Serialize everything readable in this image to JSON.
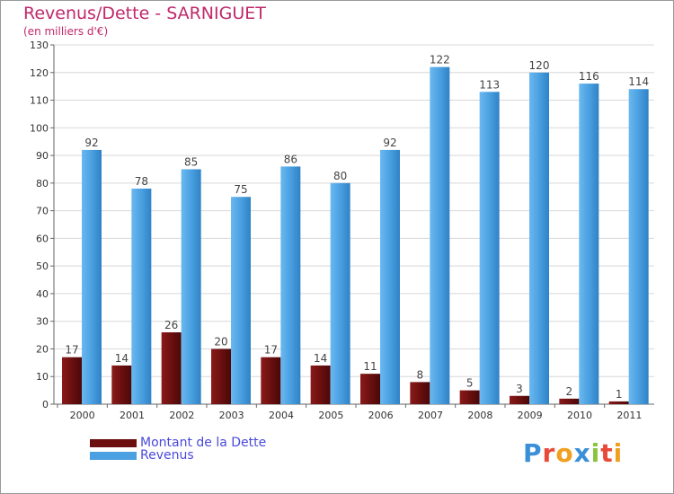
{
  "colors": {
    "title": "#c0286b",
    "dette": "#6b0f0f",
    "revenus": "#4aa0e0",
    "legend_text": "#4a4adc",
    "grid": "#d8d8d8"
  },
  "logo": {
    "text": "Proxiti",
    "letters": [
      {
        "ch": "P",
        "color": "#3a8fd8"
      },
      {
        "ch": "r",
        "color": "#e84a3a"
      },
      {
        "ch": "o",
        "color": "#f0a020"
      },
      {
        "ch": "x",
        "color": "#3a8fd8"
      },
      {
        "ch": "i",
        "color": "#8ac43f"
      },
      {
        "ch": "t",
        "color": "#e84a3a"
      },
      {
        "ch": "i",
        "color": "#f0a020"
      }
    ]
  },
  "chart_data": {
    "type": "bar",
    "title": "Revenus/Dette - SARNIGUET",
    "subtitle": "(en milliers d'€)",
    "categories": [
      "2000",
      "2001",
      "2002",
      "2003",
      "2004",
      "2005",
      "2006",
      "2007",
      "2008",
      "2009",
      "2010",
      "2011"
    ],
    "series": [
      {
        "name": "Montant de la Dette",
        "values": [
          17,
          14,
          26,
          20,
          17,
          14,
          11,
          8,
          5,
          3,
          2,
          1
        ]
      },
      {
        "name": "Revenus",
        "values": [
          92,
          78,
          85,
          75,
          86,
          80,
          92,
          122,
          113,
          120,
          116,
          114
        ]
      }
    ],
    "ylim": [
      0,
      130
    ],
    "yticks": [
      0,
      10,
      20,
      30,
      40,
      50,
      60,
      70,
      80,
      90,
      100,
      110,
      120,
      130
    ],
    "grid": true,
    "legend": "bottom-left"
  }
}
